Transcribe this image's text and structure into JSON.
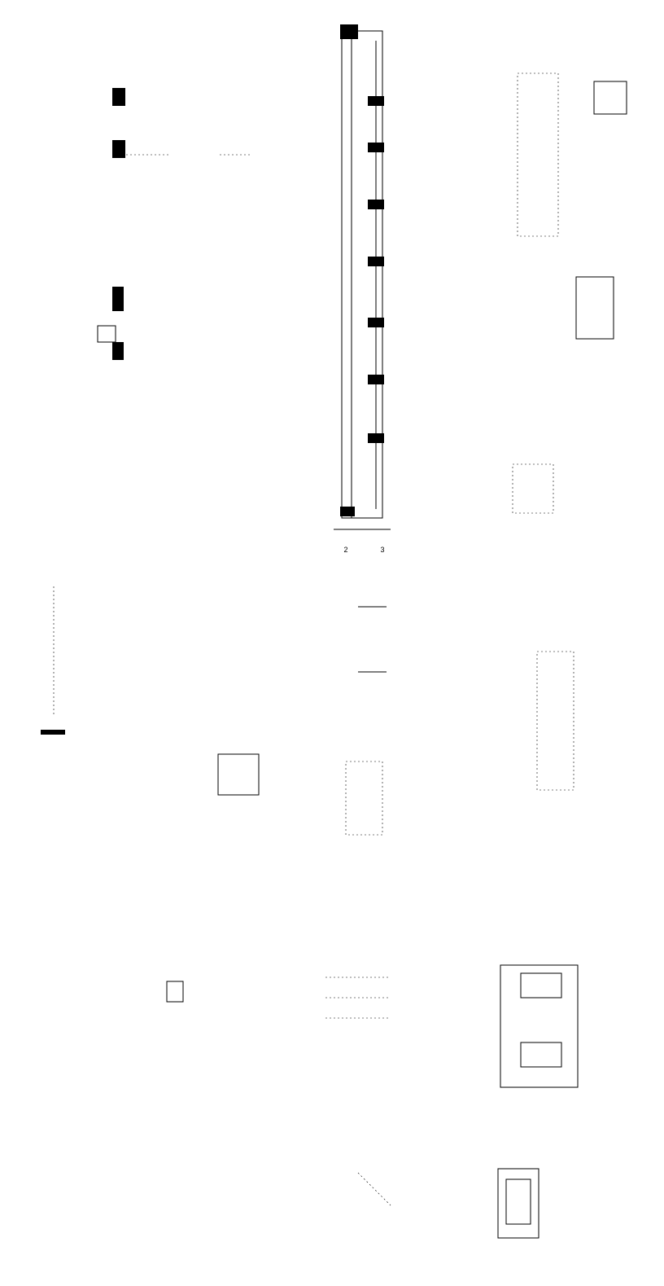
{
  "sheet": {
    "detail_markers": [
      "2",
      "3"
    ]
  }
}
